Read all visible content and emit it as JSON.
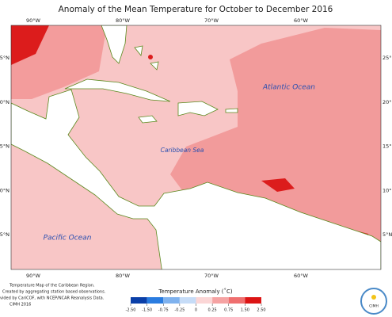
{
  "title": "Anomaly of the Mean Temperature for October to December 2016",
  "longitude_labels": [
    "90°W",
    "80°W",
    "70°W",
    "60°W"
  ],
  "latitude_labels": [
    "25°N",
    "20°N",
    "15°N",
    "10°N",
    "5°N"
  ],
  "ocean_labels": {
    "atlantic": "Atlantic Ocean",
    "caribbean": "Caribbean Sea",
    "pacific": "Pacific Ocean"
  },
  "legend": {
    "title": "Temperature Anomaly (˚C)",
    "ticks": [
      "-2.50",
      "-1.50",
      "-0.75",
      "-0.25",
      "0",
      "0.25",
      "0.75",
      "1.50",
      "2.50"
    ]
  },
  "credits": [
    "Temperature Map of the Caribbean Region.",
    "Created by aggregating station based observations.",
    "vided by CariCOF, with NCEP/NCAR Reanalysis Data.",
    "CIMH 2016"
  ],
  "logo": "CIMH"
}
